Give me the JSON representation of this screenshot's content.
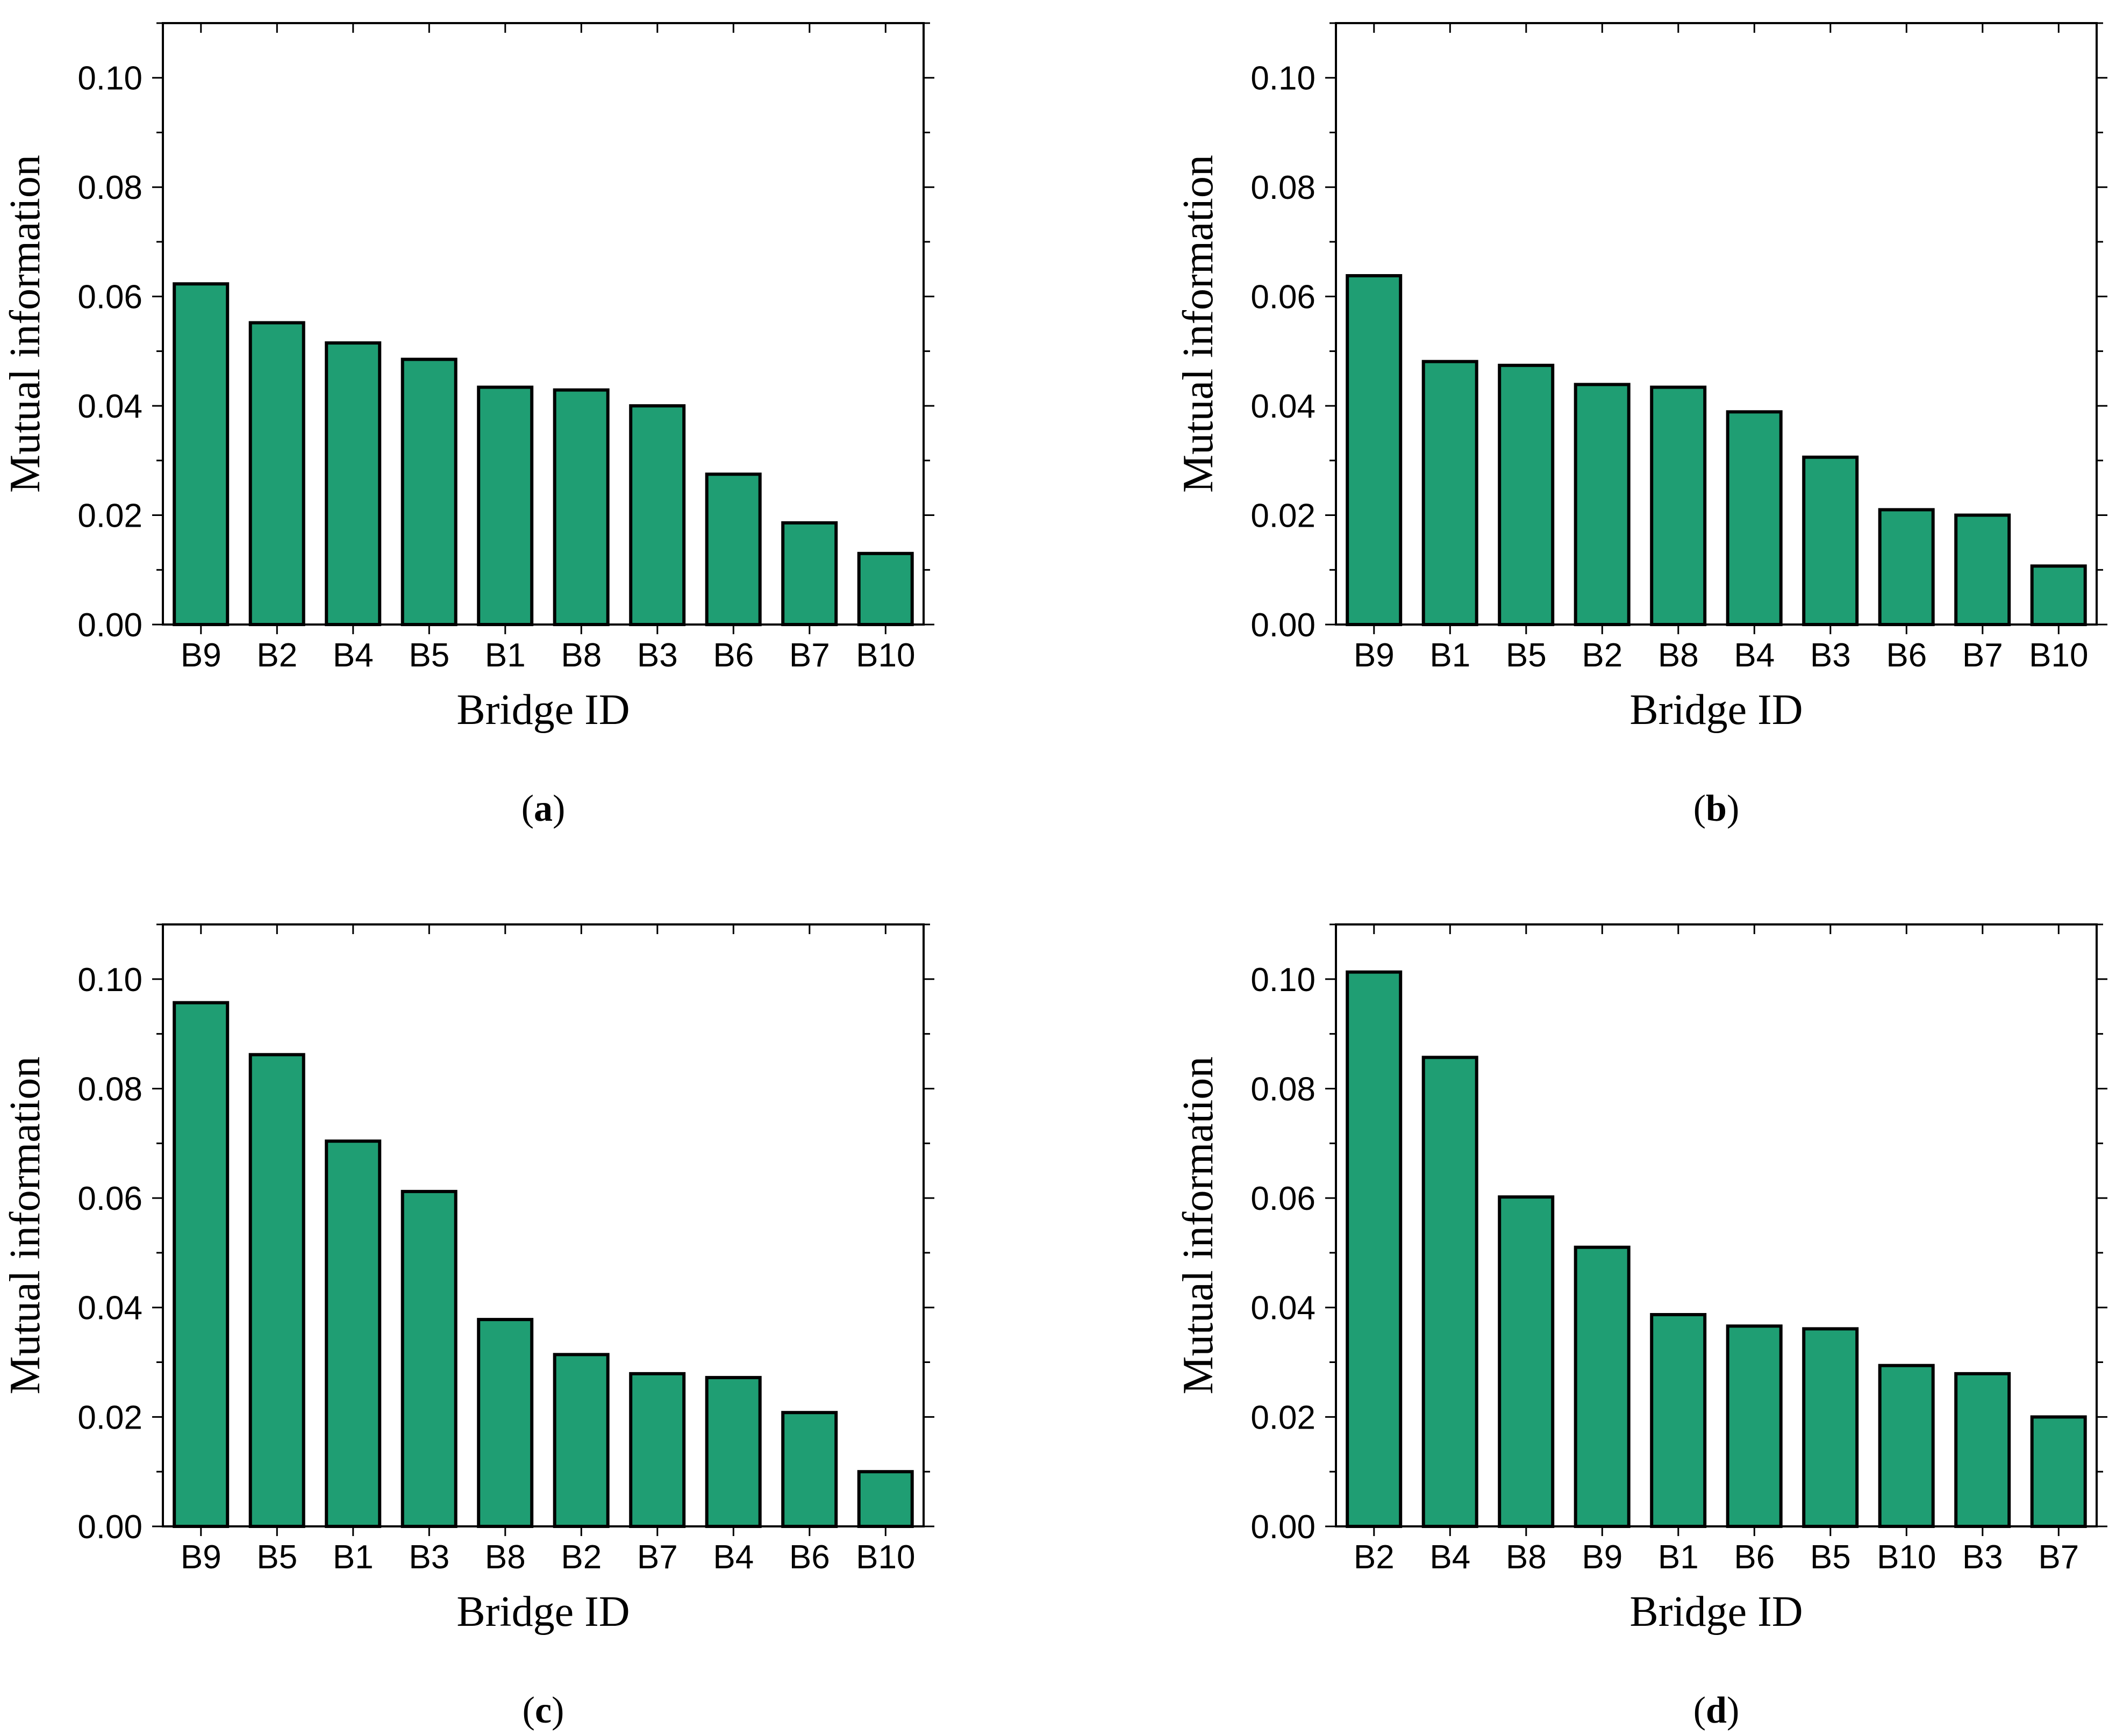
{
  "figure": {
    "bar_color": "#1f9e73",
    "bar_edge_color": "#000000",
    "axis_color": "#000000"
  },
  "chart_data": [
    {
      "panel": "a",
      "type": "bar",
      "categories": [
        "B9",
        "B2",
        "B4",
        "B5",
        "B1",
        "B8",
        "B3",
        "B6",
        "B7",
        "B10"
      ],
      "values": [
        0.0623,
        0.0552,
        0.0515,
        0.0485,
        0.0434,
        0.0429,
        0.04,
        0.0275,
        0.0186,
        0.013
      ],
      "xlabel": "Bridge ID",
      "ylabel": "Mutual information",
      "ylim": [
        0,
        0.11
      ],
      "yticks": [
        "0.00",
        "0.02",
        "0.04",
        "0.06",
        "0.08",
        "0.10"
      ],
      "caption_open": "(",
      "caption_letter": "a",
      "caption_close": ")"
    },
    {
      "panel": "b",
      "type": "bar",
      "categories": [
        "B9",
        "B1",
        "B5",
        "B2",
        "B8",
        "B4",
        "B3",
        "B6",
        "B7",
        "B10"
      ],
      "values": [
        0.0638,
        0.0481,
        0.0474,
        0.0439,
        0.0434,
        0.0389,
        0.0306,
        0.021,
        0.02,
        0.0107
      ],
      "xlabel": "Bridge ID",
      "ylabel": "Mutual information",
      "ylim": [
        0,
        0.11
      ],
      "yticks": [
        "0.00",
        "0.02",
        "0.04",
        "0.06",
        "0.08",
        "0.10"
      ],
      "caption_open": "(",
      "caption_letter": "b",
      "caption_close": ")"
    },
    {
      "panel": "c",
      "type": "bar",
      "categories": [
        "B9",
        "B5",
        "B1",
        "B3",
        "B8",
        "B2",
        "B7",
        "B4",
        "B6",
        "B10"
      ],
      "values": [
        0.0957,
        0.0862,
        0.0704,
        0.0612,
        0.0378,
        0.0314,
        0.0279,
        0.0272,
        0.0208,
        0.01
      ],
      "xlabel": "Bridge ID",
      "ylabel": "Mutual information",
      "ylim": [
        0,
        0.11
      ],
      "yticks": [
        "0.00",
        "0.02",
        "0.04",
        "0.06",
        "0.08",
        "0.10"
      ],
      "caption_open": "(",
      "caption_letter": "c",
      "caption_close": ")"
    },
    {
      "panel": "d",
      "type": "bar",
      "categories": [
        "B2",
        "B4",
        "B8",
        "B9",
        "B1",
        "B6",
        "B5",
        "B10",
        "B3",
        "B7"
      ],
      "values": [
        0.1013,
        0.0857,
        0.0602,
        0.051,
        0.0387,
        0.0366,
        0.0361,
        0.0294,
        0.0279,
        0.02
      ],
      "xlabel": "Bridge ID",
      "ylabel": "Mutual information",
      "ylim": [
        0,
        0.11
      ],
      "yticks": [
        "0.00",
        "0.02",
        "0.04",
        "0.06",
        "0.08",
        "0.10"
      ],
      "caption_open": "(",
      "caption_letter": "d",
      "caption_close": ")"
    }
  ]
}
